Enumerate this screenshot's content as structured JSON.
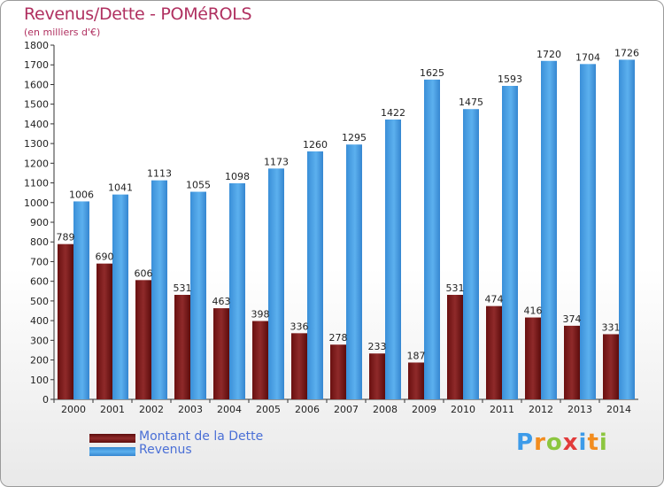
{
  "title": "Revenus/Dette - POMéROLS",
  "subtitle": "(en milliers d'€)",
  "chart_data": {
    "type": "bar",
    "categories": [
      "2000",
      "2001",
      "2002",
      "2003",
      "2004",
      "2005",
      "2006",
      "2007",
      "2008",
      "2009",
      "2010",
      "2011",
      "2012",
      "2013",
      "2014"
    ],
    "series": [
      {
        "name": "Montant de la Dette",
        "color": "#7a1a1a",
        "values": [
          789,
          690,
          606,
          531,
          463,
          398,
          336,
          278,
          233,
          187,
          531,
          474,
          416,
          374,
          331
        ]
      },
      {
        "name": "Revenus",
        "color": "#4aa3e8",
        "values": [
          1006,
          1041,
          1113,
          1055,
          1098,
          1173,
          1260,
          1295,
          1422,
          1625,
          1475,
          1593,
          1720,
          1704,
          1726
        ]
      }
    ],
    "ylim": [
      0,
      1800
    ],
    "yticks": [
      0,
      100,
      200,
      300,
      400,
      500,
      600,
      700,
      800,
      900,
      1000,
      1100,
      1200,
      1300,
      1400,
      1500,
      1600,
      1700,
      1800
    ],
    "grid": false,
    "legend": "bottom-left"
  },
  "logo": {
    "letters": [
      "P",
      "r",
      "o",
      "x",
      "i",
      "t",
      "i"
    ],
    "colors": [
      "#3d9be9",
      "#f28c1e",
      "#8cc63f",
      "#e23b3b",
      "#3d9be9",
      "#f28c1e",
      "#8cc63f"
    ]
  }
}
